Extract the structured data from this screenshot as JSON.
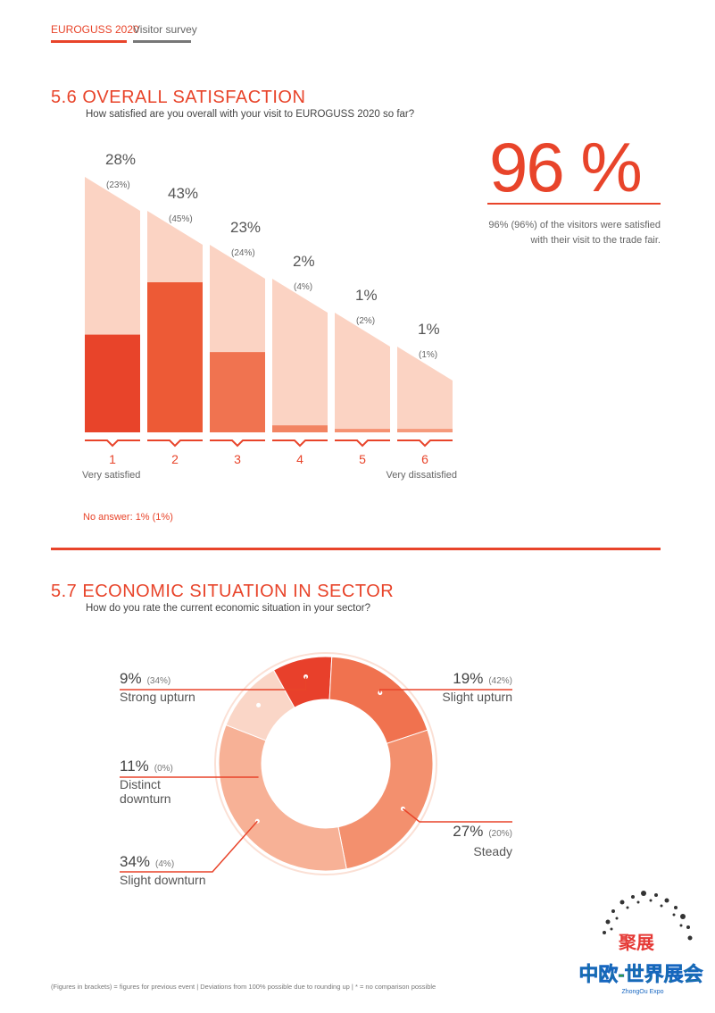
{
  "header": {
    "brand": "EUROGUSS 2020",
    "section": "Visitor survey"
  },
  "section_56": {
    "title": "5.6 OVERALL SATISFACTION",
    "question": "How satisfied are you overall with your visit to EUROGUSS 2020 so far?",
    "big_value": "96 %",
    "big_text_line1": "96% (96%) of the visitors were satisfied",
    "big_text_line2": "with their visit to the trade fair.",
    "left_label": "Very satisfied",
    "right_label": "Very dissatisfied",
    "no_answer": "No answer: 1% (1%)"
  },
  "section_57": {
    "title": "5.7 ECONOMIC SITUATION IN SECTOR",
    "question": "How do you rate the current economic situation in your sector?"
  },
  "footnote": "(Figures in brackets) = figures for previous event | Deviations from 100% possible due to rounding up | * = no comparison possible",
  "colors": {
    "accent": "#e8442a",
    "light": "#fbd3c3"
  },
  "chart_data": [
    {
      "type": "bar",
      "categories": [
        "1",
        "2",
        "3",
        "4",
        "5",
        "6"
      ],
      "series": [
        {
          "values": [
            28,
            43,
            23,
            2,
            1,
            1
          ]
        },
        {
          "values": [
            23,
            45,
            24,
            4,
            2,
            1
          ]
        }
      ],
      "value_labels": [
        "28%",
        "43%",
        "23%",
        "2%",
        "1%",
        "1%"
      ],
      "previous_labels": [
        "(23%)",
        "(45%)",
        "(24%)",
        "(4%)",
        "(2%)",
        "(1%)"
      ],
      "bar_colors": [
        "#e8442a",
        "#ed5a36",
        "#f07350",
        "#f28462",
        "#f59272",
        "#f59a7c"
      ],
      "ylim": [
        0,
        43
      ]
    },
    {
      "type": "pie",
      "donut": true,
      "categories": [
        "Strong upturn",
        "Slight upturn",
        "Steady",
        "Slight downturn",
        "Distinct downturn"
      ],
      "values": [
        9,
        19,
        27,
        34,
        11
      ],
      "previous": [
        34,
        42,
        20,
        4,
        0
      ],
      "value_labels": [
        "9%",
        "19%",
        "27%",
        "34%",
        "11%"
      ],
      "previous_labels": [
        "(34%)",
        "(42%)",
        "(20%)",
        "(4%)",
        "(0%)"
      ],
      "label_lines": [
        [
          "Strong upturn"
        ],
        [
          "Slight upturn"
        ],
        [
          "Steady"
        ],
        [
          "Slight downturn"
        ],
        [
          "Distinct",
          "downturn"
        ]
      ],
      "colors": [
        "#e8402b",
        "#f0724f",
        "#f3906e",
        "#f7b196",
        "#fad6c7"
      ]
    }
  ]
}
